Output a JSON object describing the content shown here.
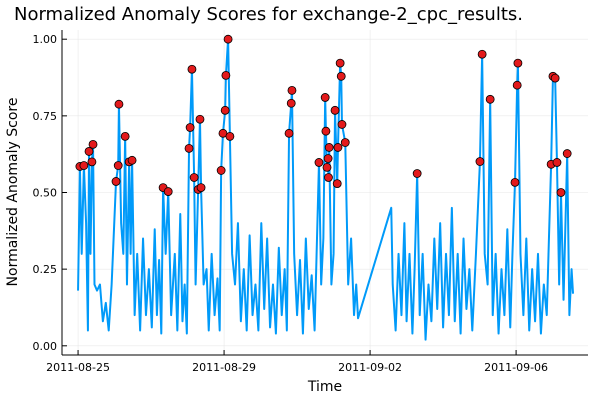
{
  "chart_data": {
    "type": "line",
    "title": "Normalized Anomaly Scores for exchange-2_cpc_results.",
    "x_label": "Time",
    "y_label": "Normalized Anomaly Score",
    "xlim": [
      -0.44,
      13.97
    ],
    "ylim": [
      -0.03,
      1.03
    ],
    "xticks": [
      {
        "value": 0,
        "label": "2011-08-25"
      },
      {
        "value": 4,
        "label": "2011-08-29"
      },
      {
        "value": 8,
        "label": "2011-09-02"
      },
      {
        "value": 12,
        "label": "2011-09-06"
      }
    ],
    "yticks": [
      {
        "value": 0,
        "label": "0.00"
      },
      {
        "value": 0.25,
        "label": "0.25"
      },
      {
        "value": 0.5,
        "label": "0.50"
      },
      {
        "value": 0.75,
        "label": "0.75"
      },
      {
        "value": 1,
        "label": "1.00"
      }
    ],
    "grid": true,
    "series": [
      {
        "type": "line",
        "color": "#009af9",
        "x": [
          0.0,
          0.05,
          0.1,
          0.16,
          0.22,
          0.27,
          0.3,
          0.34,
          0.38,
          0.41,
          0.45,
          0.52,
          0.6,
          0.68,
          0.76,
          0.84,
          0.92,
          1.04,
          1.1,
          1.12,
          1.18,
          1.24,
          1.29,
          1.34,
          1.4,
          1.44,
          1.48,
          1.55,
          1.62,
          1.7,
          1.78,
          1.86,
          1.94,
          2.02,
          2.1,
          2.16,
          2.22,
          2.28,
          2.33,
          2.4,
          2.47,
          2.55,
          2.65,
          2.72,
          2.8,
          2.86,
          2.92,
          2.98,
          3.04,
          3.07,
          3.12,
          3.18,
          3.22,
          3.29,
          3.34,
          3.37,
          3.44,
          3.52,
          3.58,
          3.66,
          3.74,
          3.82,
          3.88,
          3.92,
          3.97,
          4.03,
          4.05,
          4.11,
          4.16,
          4.22,
          4.3,
          4.38,
          4.46,
          4.54,
          4.62,
          4.7,
          4.78,
          4.86,
          4.94,
          5.02,
          5.1,
          5.18,
          5.26,
          5.34,
          5.42,
          5.5,
          5.58,
          5.66,
          5.72,
          5.78,
          5.84,
          5.86,
          5.92,
          6.0,
          6.08,
          6.16,
          6.24,
          6.32,
          6.4,
          6.48,
          6.6,
          6.66,
          6.72,
          6.77,
          6.79,
          6.82,
          6.85,
          6.86,
          6.88,
          6.94,
          7.0,
          7.04,
          7.1,
          7.12,
          7.18,
          7.21,
          7.23,
          7.32,
          7.4,
          7.48,
          7.56,
          7.62,
          7.67,
          8.58,
          8.62,
          8.7,
          8.78,
          8.86,
          8.94,
          9.0,
          9.08,
          9.16,
          9.22,
          9.29,
          9.36,
          9.44,
          9.52,
          9.6,
          9.68,
          9.76,
          9.84,
          9.92,
          10.0,
          10.08,
          10.16,
          10.24,
          10.32,
          10.4,
          10.48,
          10.56,
          10.64,
          10.72,
          10.8,
          10.9,
          11.01,
          11.07,
          11.14,
          11.22,
          11.29,
          11.36,
          11.44,
          11.52,
          11.6,
          11.68,
          11.76,
          11.84,
          11.9,
          11.97,
          12.03,
          12.05,
          12.12,
          12.2,
          12.28,
          12.36,
          12.44,
          12.52,
          12.6,
          12.68,
          12.76,
          12.84,
          12.9,
          12.96,
          13.01,
          13.07,
          13.12,
          13.18,
          13.23,
          13.3,
          13.4,
          13.46,
          13.52,
          13.56
        ],
        "values": [
          0.18,
          0.585,
          0.3,
          0.588,
          0.4,
          0.05,
          0.634,
          0.3,
          0.6,
          0.657,
          0.2,
          0.18,
          0.2,
          0.08,
          0.14,
          0.05,
          0.2,
          0.536,
          0.588,
          0.788,
          0.4,
          0.3,
          0.683,
          0.2,
          0.6,
          0.3,
          0.605,
          0.1,
          0.3,
          0.05,
          0.35,
          0.1,
          0.25,
          0.06,
          0.38,
          0.1,
          0.28,
          0.04,
          0.516,
          0.3,
          0.503,
          0.1,
          0.3,
          0.05,
          0.43,
          0.08,
          0.2,
          0.04,
          0.644,
          0.712,
          0.902,
          0.549,
          0.2,
          0.51,
          0.739,
          0.516,
          0.2,
          0.25,
          0.05,
          0.3,
          0.1,
          0.22,
          0.05,
          0.572,
          0.693,
          0.768,
          0.882,
          1.0,
          0.683,
          0.3,
          0.2,
          0.4,
          0.08,
          0.25,
          0.05,
          0.36,
          0.1,
          0.2,
          0.05,
          0.4,
          0.12,
          0.35,
          0.06,
          0.2,
          0.04,
          0.32,
          0.1,
          0.25,
          0.05,
          0.693,
          0.791,
          0.833,
          0.3,
          0.1,
          0.28,
          0.04,
          0.35,
          0.12,
          0.23,
          0.05,
          0.598,
          0.2,
          0.35,
          0.81,
          0.7,
          0.582,
          0.611,
          0.549,
          0.647,
          0.2,
          0.3,
          0.768,
          0.529,
          0.647,
          0.922,
          0.879,
          0.722,
          0.663,
          0.2,
          0.35,
          0.1,
          0.2,
          0.09,
          0.45,
          0.2,
          0.05,
          0.3,
          0.1,
          0.4,
          0.08,
          0.3,
          0.04,
          0.25,
          0.562,
          0.1,
          0.3,
          0.02,
          0.2,
          0.08,
          0.35,
          0.12,
          0.4,
          0.06,
          0.3,
          0.1,
          0.45,
          0.08,
          0.3,
          0.04,
          0.35,
          0.12,
          0.25,
          0.05,
          0.3,
          0.601,
          0.951,
          0.3,
          0.2,
          0.804,
          0.1,
          0.3,
          0.04,
          0.25,
          0.1,
          0.38,
          0.06,
          0.3,
          0.533,
          0.85,
          0.922,
          0.3,
          0.1,
          0.35,
          0.05,
          0.25,
          0.08,
          0.3,
          0.04,
          0.2,
          0.1,
          0.35,
          0.592,
          0.879,
          0.873,
          0.598,
          0.2,
          0.5,
          0.15,
          0.627,
          0.1,
          0.25,
          0.17
        ]
      },
      {
        "type": "scatter",
        "color": "#e31a1c",
        "x": [
          0.05,
          0.16,
          0.3,
          0.38,
          0.41,
          1.04,
          1.1,
          1.12,
          1.29,
          1.4,
          1.48,
          2.33,
          2.47,
          3.04,
          3.07,
          3.12,
          3.18,
          3.29,
          3.37,
          3.34,
          3.92,
          3.97,
          4.03,
          4.05,
          4.11,
          4.16,
          5.78,
          5.84,
          5.86,
          6.6,
          6.82,
          6.85,
          6.77,
          6.79,
          6.88,
          6.86,
          7.04,
          7.1,
          7.12,
          7.18,
          7.21,
          7.23,
          7.32,
          9.29,
          11.01,
          11.07,
          11.29,
          11.97,
          12.03,
          12.05,
          13.01,
          13.07,
          12.96,
          13.12,
          13.23,
          13.4
        ],
        "values": [
          0.585,
          0.588,
          0.634,
          0.6,
          0.657,
          0.536,
          0.588,
          0.788,
          0.683,
          0.6,
          0.605,
          0.516,
          0.503,
          0.644,
          0.712,
          0.902,
          0.549,
          0.51,
          0.516,
          0.739,
          0.572,
          0.693,
          0.768,
          0.882,
          1.0,
          0.683,
          0.693,
          0.791,
          0.833,
          0.598,
          0.582,
          0.611,
          0.81,
          0.7,
          0.647,
          0.549,
          0.768,
          0.529,
          0.647,
          0.922,
          0.879,
          0.722,
          0.663,
          0.562,
          0.601,
          0.951,
          0.804,
          0.533,
          0.85,
          0.922,
          0.879,
          0.873,
          0.592,
          0.598,
          0.5,
          0.627
        ]
      }
    ]
  }
}
